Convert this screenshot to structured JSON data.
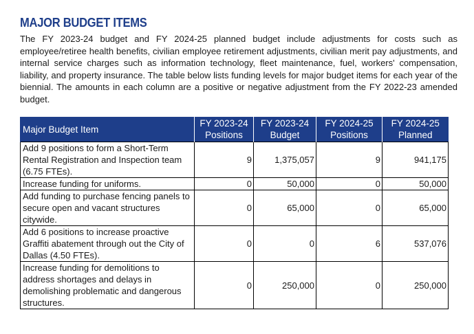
{
  "section": {
    "title": "MAJOR BUDGET ITEMS",
    "intro": "The FY 2023-24 budget and FY 2024-25 planned budget include adjustments for costs such as employee/retiree health benefits, civilian employee retirement adjustments, civilian merit pay adjustments, and internal service charges such as information technology, fleet maintenance, fuel, workers' compensation, liability, and property insurance. The table below lists funding levels for major budget items for each year of the biennial. The amounts in each column are a positive or negative adjustment from the FY 2022-23 amended budget."
  },
  "table": {
    "headers": {
      "item": "Major Budget Item",
      "fy24_positions_line1": "FY 2023-24",
      "fy24_positions_line2": "Positions",
      "fy24_budget_line1": "FY 2023-24",
      "fy24_budget_line2": "Budget",
      "fy25_positions_line1": "FY 2024-25",
      "fy25_positions_line2": "Positions",
      "fy25_planned_line1": "FY 2024-25",
      "fy25_planned_line2": "Planned"
    },
    "rows": [
      {
        "item": "Add 9 positions to form a Short-Term Rental Registration and Inspection team (6.75 FTEs).",
        "fy24_positions": "9",
        "fy24_budget": "1,375,057",
        "fy25_positions": "9",
        "fy25_planned": "941,175"
      },
      {
        "item": "Increase funding for uniforms.",
        "fy24_positions": "0",
        "fy24_budget": "50,000",
        "fy25_positions": "0",
        "fy25_planned": "50,000"
      },
      {
        "item": "Add funding to purchase fencing panels to secure open and vacant structures citywide.",
        "fy24_positions": "0",
        "fy24_budget": "65,000",
        "fy25_positions": "0",
        "fy25_planned": "65,000"
      },
      {
        "item": "Add 6 positions to increase proactive Graffiti abatement through out the City of Dallas (4.50 FTEs).",
        "fy24_positions": "0",
        "fy24_budget": "0",
        "fy25_positions": "6",
        "fy25_planned": "537,076"
      },
      {
        "item": "Increase funding for demolitions to address shortages and delays in demolishing problematic and dangerous structures.",
        "fy24_positions": "0",
        "fy24_budget": "250,000",
        "fy25_positions": "0",
        "fy25_planned": "250,000"
      }
    ]
  },
  "colors": {
    "heading": "#1e3e8a",
    "header_bg": "#1e3e8a",
    "header_text": "#ffffff",
    "border": "#000000"
  }
}
